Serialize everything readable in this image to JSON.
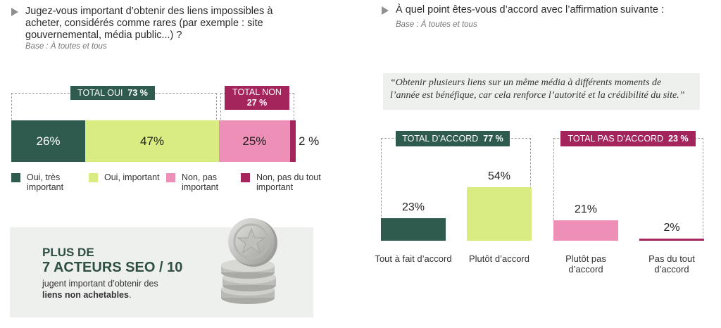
{
  "left": {
    "question": "Jugez-vous important d’obtenir des liens impossibles à acheter, considérés comme rares (par exemple : site gouvernemental, média public...) ?",
    "base": "Base : À toutes et tous",
    "total_oui_label": "TOTAL OUI",
    "total_oui_value": "73 %",
    "total_non_label": "TOTAL NON",
    "total_non_value": "27 %",
    "legend": [
      {
        "label": "Oui, très important"
      },
      {
        "label": "Oui, important"
      },
      {
        "label": "Non, pas important"
      },
      {
        "label": "Non, pas du tout important"
      }
    ]
  },
  "card": {
    "line1": "PLUS DE",
    "line2_main": "7 ACTEURS SEO",
    "line2_fraction": "/ 10",
    "line3": "jugent important d’obtenir des",
    "line4_bold": "liens non achetables",
    "line4_end": "."
  },
  "right": {
    "question": "À quel point êtes-vous d’accord avec l’affirmation suivante :",
    "base": "Base : À toutes et tous",
    "quote": "“Obtenir plusieurs liens sur un même média à différents moments de l’année est bénéfique, car cela renforce l’autorité et la crédibilité du site.”",
    "total_accord_label": "TOTAL D’ACCORD",
    "total_accord_value": "77 %",
    "total_pas_accord_label": "TOTAL PAS D’ACCORD",
    "total_pas_accord_value": "23 %"
  },
  "colors": {
    "dark_green": "#2f5a4e",
    "light_green": "#d8ec82",
    "pink": "#ee8fb7",
    "burgundy": "#a3255c",
    "card_bg": "#eef0ee"
  },
  "chart_data": [
    {
      "type": "bar",
      "orientation": "horizontal-stacked",
      "categories": [
        "Oui, très important",
        "Oui, important",
        "Non, pas important",
        "Non, pas du tout important"
      ],
      "values": [
        26,
        47,
        25,
        2
      ],
      "value_labels": [
        "26%",
        "47%",
        "25%",
        "2 %"
      ],
      "title": "",
      "xlabel": "",
      "ylabel": "",
      "xlim": [
        0,
        100
      ],
      "colors": [
        "#2f5a4e",
        "#d8ec82",
        "#ee8fb7",
        "#a3255c"
      ],
      "legend": "bottom"
    },
    {
      "type": "bar",
      "orientation": "vertical",
      "categories": [
        "Tout à fait d’accord",
        "Plutôt d’accord",
        "Plutôt pas d’accord",
        "Pas du tout d’accord"
      ],
      "values": [
        23,
        54,
        21,
        2
      ],
      "value_labels": [
        "23%",
        "54%",
        "21%",
        "2%"
      ],
      "title": "",
      "xlabel": "",
      "ylabel": "",
      "ylim": [
        0,
        100
      ],
      "colors": [
        "#2f5a4e",
        "#d8ec82",
        "#ee8fb7",
        "#a3255c"
      ]
    }
  ]
}
